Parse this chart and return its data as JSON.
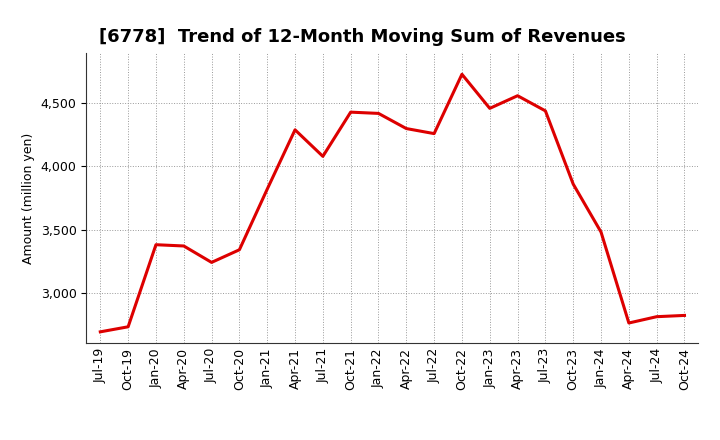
{
  "title": "[6778]  Trend of 12-Month Moving Sum of Revenues",
  "ylabel": "Amount (million yen)",
  "line_color": "#dd0000",
  "line_width": 2.2,
  "background_color": "#ffffff",
  "plot_bg_color": "#ffffff",
  "grid_color": "#999999",
  "ylim": [
    2600,
    4900
  ],
  "yticks": [
    3000,
    3500,
    4000,
    4500
  ],
  "labels": [
    "Jul-19",
    "Oct-19",
    "Jan-20",
    "Apr-20",
    "Jul-20",
    "Oct-20",
    "Jan-21",
    "Apr-21",
    "Jul-21",
    "Oct-21",
    "Jan-22",
    "Apr-22",
    "Jul-22",
    "Oct-22",
    "Jan-23",
    "Apr-23",
    "Jul-23",
    "Oct-23",
    "Jan-24",
    "Apr-24",
    "Jul-24",
    "Oct-24"
  ],
  "values": [
    2690,
    2730,
    3380,
    3370,
    3240,
    3340,
    3820,
    4290,
    4080,
    4430,
    4420,
    4300,
    4260,
    4730,
    4460,
    4560,
    4440,
    3860,
    3480,
    2760,
    2810,
    2820
  ],
  "title_fontsize": 13,
  "ylabel_fontsize": 9,
  "tick_fontsize": 9
}
